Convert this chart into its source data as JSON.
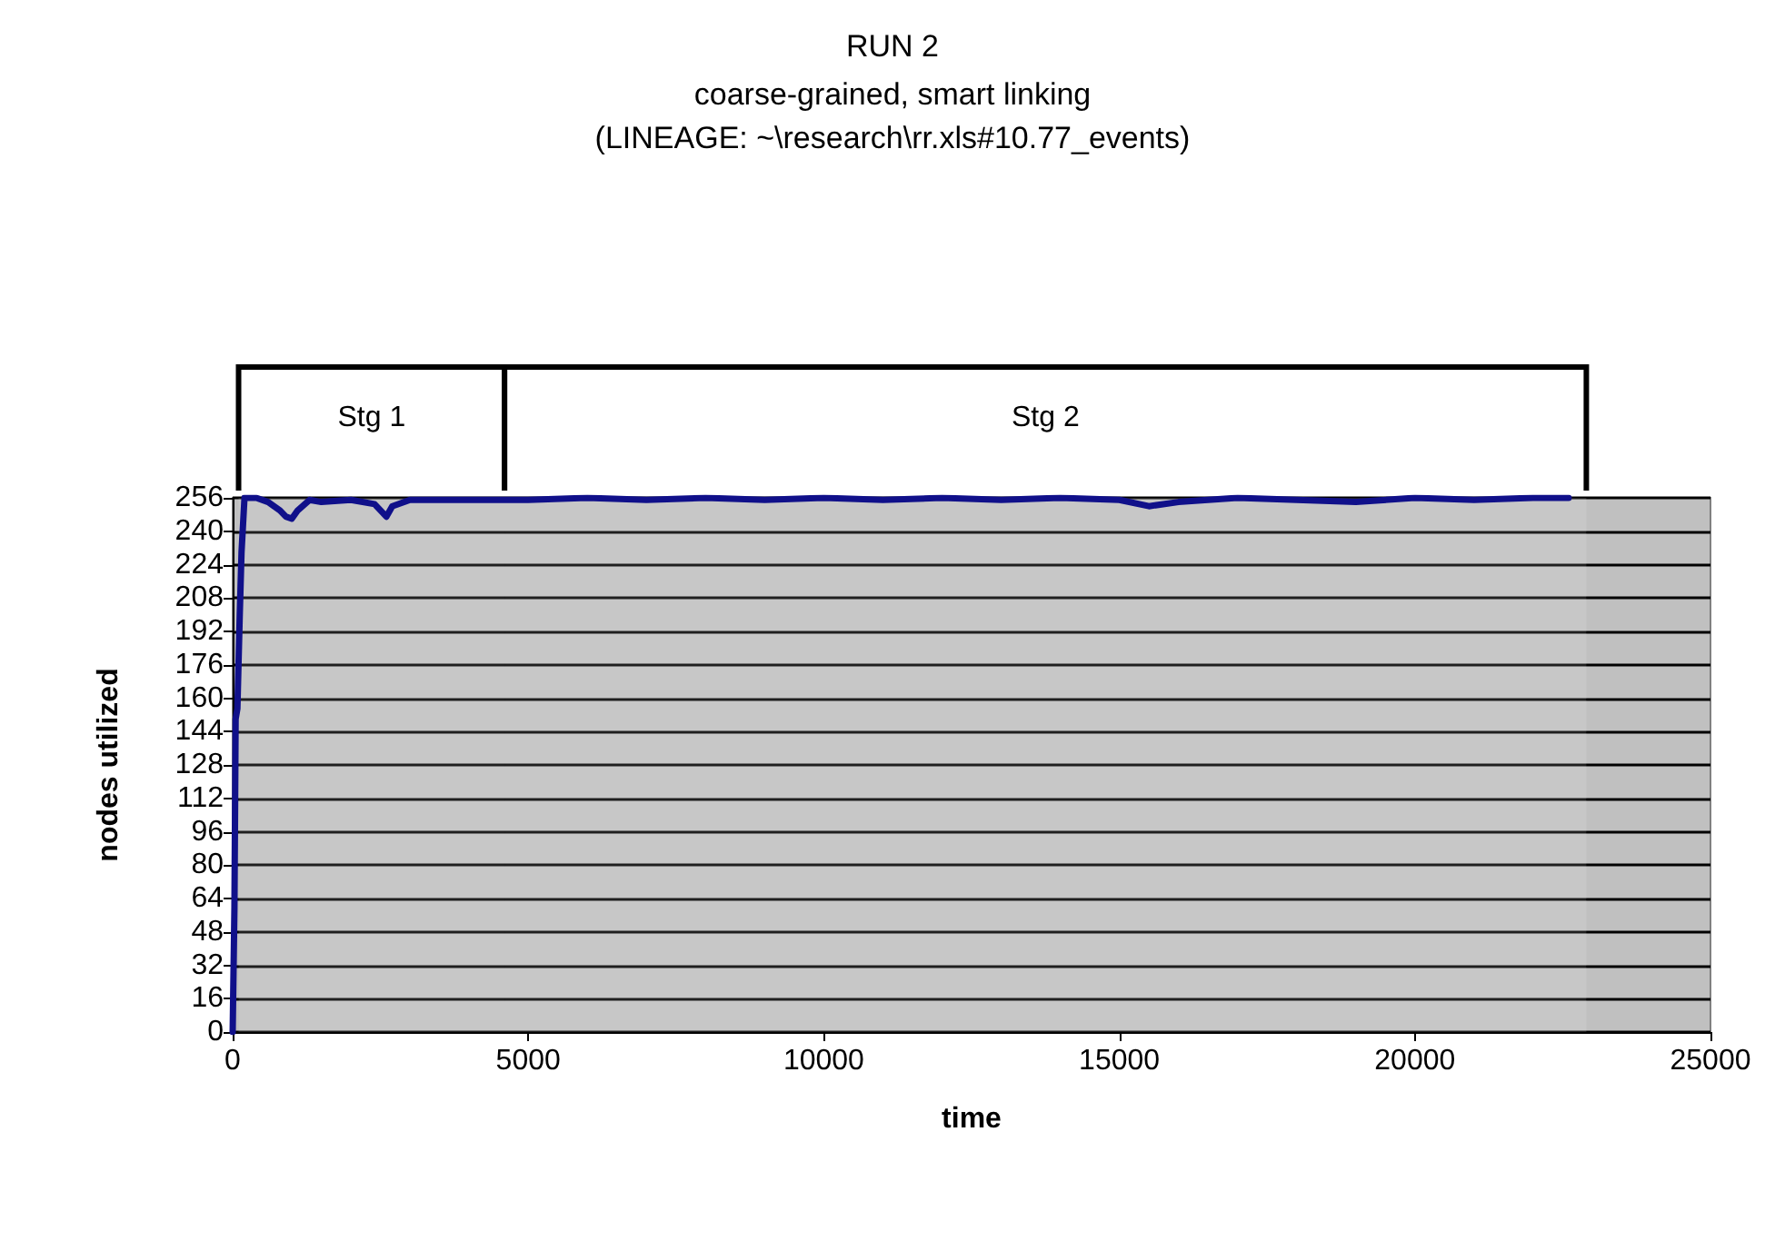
{
  "chart_data": {
    "type": "line",
    "title": "RUN 2",
    "subtitle": "coarse-grained, smart linking\n(LINEAGE: ~\\research\\rr.xls#10.77_events)",
    "xlabel": "time",
    "ylabel": "nodes utilized",
    "x": [
      0,
      30,
      50,
      80,
      120,
      150,
      200,
      400,
      600,
      800,
      900,
      1000,
      1100,
      1300,
      1500,
      2000,
      2400,
      2600,
      2700,
      3000,
      4000,
      5000,
      6000,
      7000,
      8000,
      9000,
      10000,
      11000,
      12000,
      13000,
      14000,
      15000,
      15500,
      16000,
      17000,
      18000,
      19000,
      20000,
      21000,
      22000,
      22600
    ],
    "series": [
      {
        "color": "#10108a",
        "values": [
          0,
          60,
          150,
          155,
          200,
          230,
          256,
          256,
          254,
          250,
          247,
          246,
          250,
          255,
          254,
          255,
          253,
          247,
          252,
          255,
          255,
          255,
          256,
          255,
          256,
          255,
          256,
          255,
          256,
          255,
          256,
          255,
          252,
          254,
          256,
          255,
          254,
          256,
          255,
          256,
          256
        ]
      }
    ],
    "xlim": [
      0,
      25000
    ],
    "xticks": [
      0,
      5000,
      10000,
      15000,
      20000,
      25000
    ],
    "ylim": [
      0,
      256
    ],
    "yticks": [
      0,
      16,
      32,
      48,
      64,
      80,
      96,
      112,
      128,
      144,
      160,
      176,
      192,
      208,
      224,
      240,
      256
    ],
    "grid": "y",
    "marker": "none",
    "line_style": "solid",
    "bands": [
      {
        "axis": "x",
        "from": 100,
        "to": 4600,
        "label": "Stg 1"
      },
      {
        "axis": "x",
        "from": 4600,
        "to": 22900,
        "label": "Stg 2"
      }
    ]
  }
}
